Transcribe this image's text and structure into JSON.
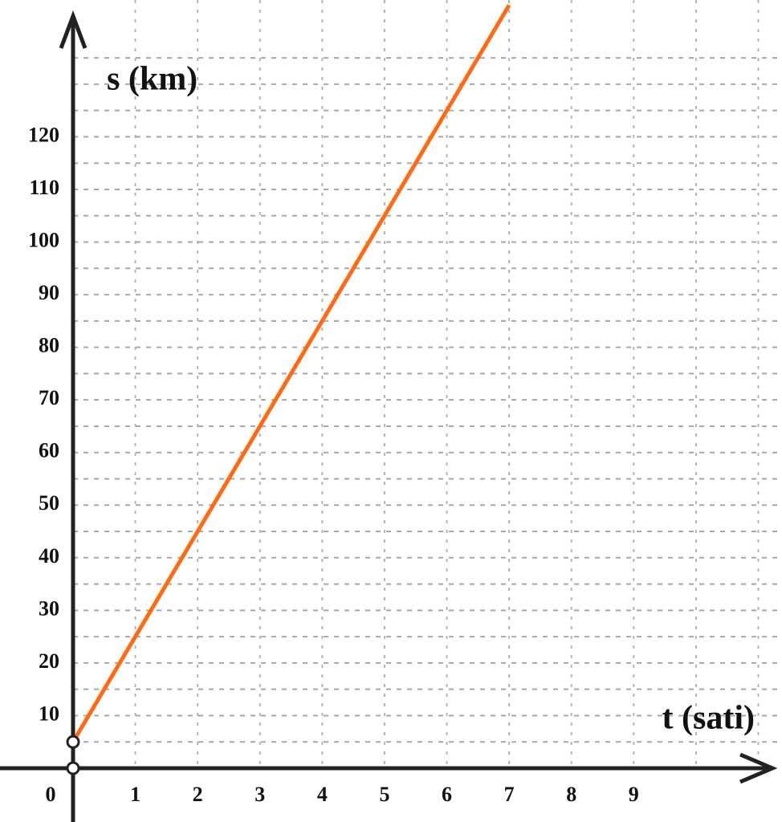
{
  "chart_data": {
    "type": "line",
    "x_label": "t (sati)",
    "y_label": "s (km)",
    "origin_label": "0",
    "x": [
      0,
      7
    ],
    "series": [
      {
        "color": "#ff6a13",
        "values": [
          5,
          145
        ]
      }
    ],
    "points": {
      "x": [
        0,
        0
      ],
      "y": [
        5,
        0
      ]
    },
    "xlim": [
      0,
      11.2
    ],
    "ylim": [
      0,
      146
    ],
    "xticks": [
      1,
      2,
      3,
      4,
      5,
      6,
      7,
      8,
      9
    ],
    "yticks": [
      10,
      20,
      30,
      40,
      50,
      60,
      70,
      80,
      90,
      100,
      110,
      120
    ],
    "xgrid": [
      1,
      2,
      3,
      4,
      5,
      6,
      7,
      8,
      9,
      10,
      11
    ],
    "ygrid": [
      5,
      10,
      15,
      20,
      25,
      30,
      35,
      40,
      45,
      50,
      55,
      60,
      65,
      70,
      75,
      80,
      85,
      90,
      95,
      100,
      105,
      110,
      115,
      120,
      125,
      130,
      135
    ],
    "grid": true
  }
}
